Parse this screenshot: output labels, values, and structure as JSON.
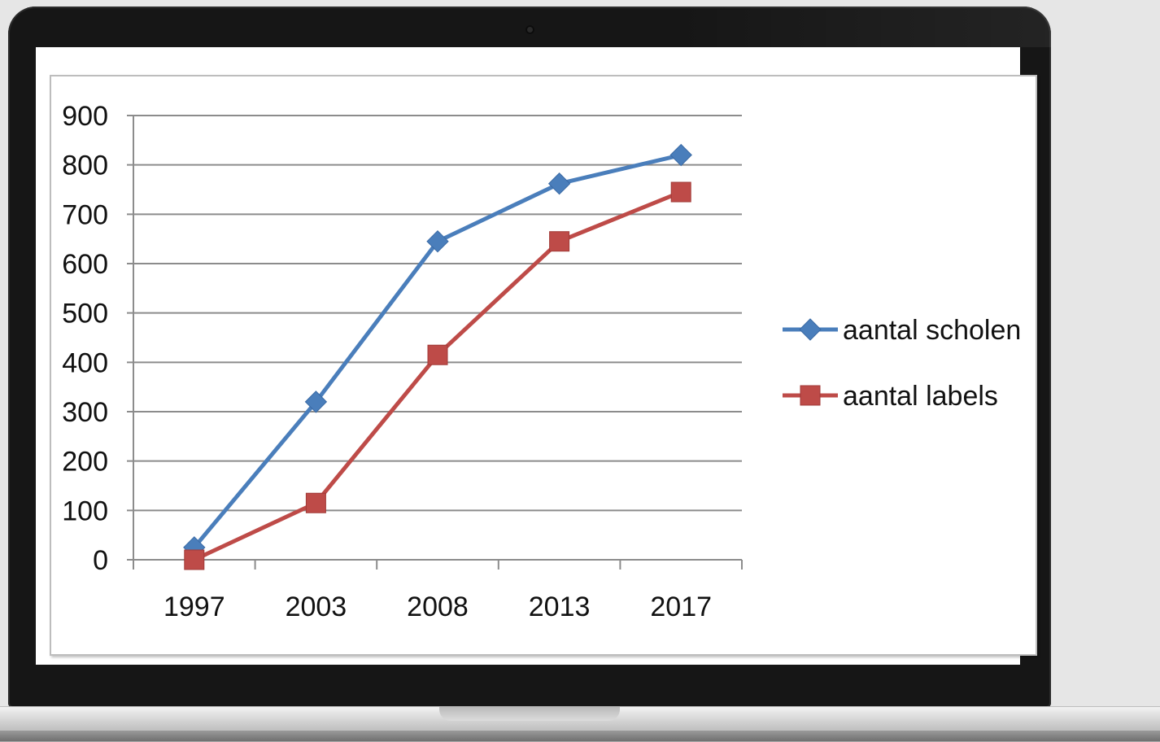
{
  "chart_data": {
    "type": "line",
    "title": "",
    "xlabel": "",
    "ylabel": "",
    "categories": [
      "1997",
      "2003",
      "2008",
      "2013",
      "2017"
    ],
    "ylim": [
      0,
      900
    ],
    "yticks": [
      0,
      100,
      200,
      300,
      400,
      500,
      600,
      700,
      800,
      900
    ],
    "grid": true,
    "legend": "right",
    "series": [
      {
        "name": "aantal scholen",
        "values": [
          25,
          320,
          645,
          762,
          820
        ],
        "color": "#4a7ebb",
        "marker": "diamond"
      },
      {
        "name": "aantal labels",
        "values": [
          0,
          115,
          415,
          645,
          745
        ],
        "color": "#be4b48",
        "marker": "square"
      }
    ]
  }
}
